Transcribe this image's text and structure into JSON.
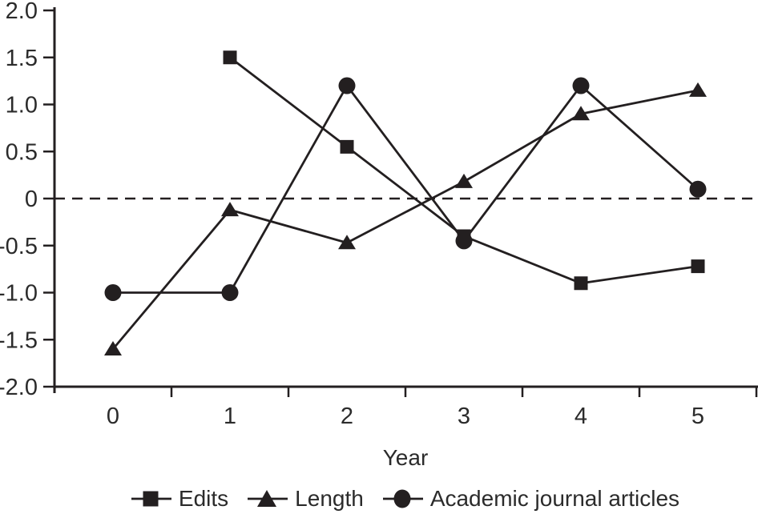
{
  "figure": {
    "background": "#ffffff",
    "ink_color": "#231f20",
    "text_color": "#2b2b2b"
  },
  "chart_data": {
    "type": "line",
    "title": "",
    "xlabel": "Year",
    "ylabel": "",
    "x_categories": [
      "0",
      "1",
      "2",
      "3",
      "4",
      "5"
    ],
    "ylim": [
      -2.0,
      2.0
    ],
    "y_ticks": [
      2.0,
      1.5,
      1.0,
      0.5,
      0,
      -0.5,
      -1.0,
      -1.5,
      -2.0
    ],
    "y_tick_labels": [
      "2.0",
      "1.5",
      "1.0",
      "0.5",
      "0",
      "-0.5",
      "-1.0",
      "-1.5",
      "-2.0"
    ],
    "grid": false,
    "zero_line": {
      "value": 0,
      "style": "dashed"
    },
    "legend_position": "bottom",
    "series": [
      {
        "name": "Edits",
        "marker": "square",
        "values": [
          null,
          1.5,
          0.55,
          -0.4,
          -0.9,
          -0.72
        ]
      },
      {
        "name": "Length",
        "marker": "triangle",
        "values": [
          -1.6,
          -0.12,
          -0.47,
          0.18,
          0.9,
          1.15
        ]
      },
      {
        "name": "Academic journal articles",
        "marker": "circle",
        "values": [
          -1.0,
          -1.0,
          1.2,
          -0.45,
          1.2,
          0.1
        ]
      }
    ]
  }
}
